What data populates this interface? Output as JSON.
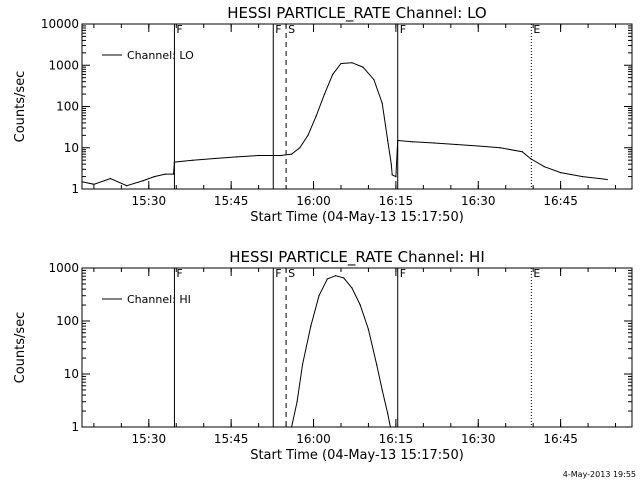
{
  "chart_data": [
    {
      "type": "line",
      "title": "HESSI PARTICLE_RATE Channel: LO",
      "xlabel": "Start Time (04-May-13 15:17:50)",
      "ylabel": "Counts/sec",
      "yscale": "log",
      "ylim": [
        1,
        10000
      ],
      "xlim": [
        "15:17:50",
        "16:58:00"
      ],
      "yticks": [
        "1",
        "10",
        "100",
        "1000",
        "10000"
      ],
      "xticks": [
        "15:30",
        "15:45",
        "16:00",
        "16:15",
        "16:30",
        "16:45"
      ],
      "legend": {
        "position": "top-left",
        "entries": [
          "Channel: LO"
        ]
      },
      "grid": false,
      "series": [
        {
          "name": "Channel: LO",
          "x": [
            "15:17:50",
            "15:20:00",
            "15:23:00",
            "15:26:00",
            "15:29:00",
            "15:31:00",
            "15:33:00",
            "15:34:30",
            "15:34:40",
            "15:38:00",
            "15:42:00",
            "15:46:00",
            "15:50:00",
            "15:54:00",
            "15:56:00",
            "15:57:30",
            "15:59:00",
            "16:00:30",
            "16:02:00",
            "16:03:30",
            "16:05:00",
            "16:07:00",
            "16:09:00",
            "16:11:00",
            "16:12:30",
            "16:13:30",
            "16:14:10",
            "16:14:20",
            "16:15:00",
            "16:15:20",
            "16:18:00",
            "16:22:00",
            "16:26:00",
            "16:30:00",
            "16:34:00",
            "16:38:00",
            "16:39:30",
            "16:42:00",
            "16:45:00",
            "16:49:00",
            "16:52:00",
            "16:53:30"
          ],
          "y": [
            1.5,
            1.3,
            1.8,
            1.2,
            1.6,
            2.0,
            2.3,
            2.3,
            4.5,
            5.0,
            5.5,
            6.0,
            6.5,
            6.5,
            7.0,
            10,
            20,
            60,
            200,
            600,
            1100,
            1150,
            900,
            450,
            120,
            15,
            4.0,
            2.2,
            2.0,
            15,
            14,
            13,
            12,
            11,
            10,
            8,
            5.5,
            3.5,
            2.5,
            2.0,
            1.8,
            1.7
          ]
        }
      ],
      "annotations": [
        {
          "label": "F",
          "time": "15:34:40"
        },
        {
          "label": "F",
          "time": "15:52:40"
        },
        {
          "label": "S",
          "time": "15:55:00"
        },
        {
          "label": "F",
          "time": "16:15:20"
        },
        {
          "label": "E",
          "time": "16:39:40"
        }
      ]
    },
    {
      "type": "line",
      "title": "HESSI PARTICLE_RATE Channel: HI",
      "xlabel": "Start Time (04-May-13 15:17:50)",
      "ylabel": "Counts/sec",
      "yscale": "log",
      "ylim": [
        1,
        1000
      ],
      "xlim": [
        "15:17:50",
        "16:58:00"
      ],
      "yticks": [
        "1",
        "10",
        "100",
        "1000"
      ],
      "xticks": [
        "15:30",
        "15:45",
        "16:00",
        "16:15",
        "16:30",
        "16:45"
      ],
      "legend": {
        "position": "top-left",
        "entries": [
          "Channel: HI"
        ]
      },
      "grid": false,
      "series": [
        {
          "name": "Channel: HI",
          "x": [
            "15:56:00",
            "15:57:00",
            "15:58:00",
            "15:59:30",
            "16:01:00",
            "16:02:30",
            "16:04:00",
            "16:05:30",
            "16:07:00",
            "16:08:30",
            "16:10:00",
            "16:11:30",
            "16:12:30",
            "16:13:30",
            "16:14:00"
          ],
          "y": [
            1.0,
            3.0,
            15,
            80,
            300,
            620,
            720,
            650,
            420,
            200,
            70,
            15,
            5,
            1.8,
            1.0
          ]
        }
      ],
      "annotations": [
        {
          "label": "F",
          "time": "15:34:40"
        },
        {
          "label": "F",
          "time": "15:52:40"
        },
        {
          "label": "S",
          "time": "15:55:00"
        },
        {
          "label": "F",
          "time": "16:15:20"
        },
        {
          "label": "E",
          "time": "16:39:40"
        }
      ]
    }
  ],
  "footer": {
    "timestamp": "4-May-2013 19:55"
  }
}
